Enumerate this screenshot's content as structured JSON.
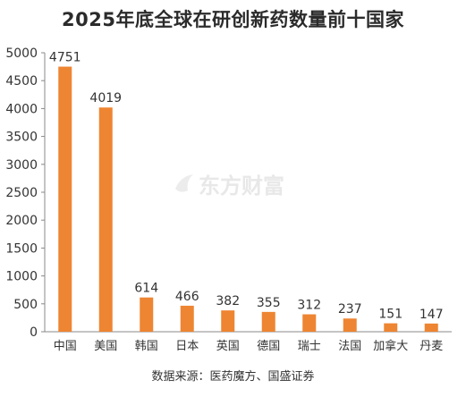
{
  "chart_data": {
    "type": "bar",
    "title": "2025年底全球在研创新药数量前十国家",
    "categories": [
      "中国",
      "美国",
      "韩国",
      "日本",
      "英国",
      "德国",
      "瑞士",
      "法国",
      "加拿大",
      "丹麦"
    ],
    "values": [
      4751,
      4019,
      614,
      466,
      382,
      355,
      312,
      237,
      151,
      147
    ],
    "ylim": [
      0,
      5000
    ],
    "yticks": [
      0,
      500,
      1000,
      1500,
      2000,
      2500,
      3000,
      3500,
      4000,
      4500,
      5000
    ],
    "xlabel": "",
    "ylabel": "",
    "grid": false,
    "legend": "none",
    "bar_color": "#ee8532",
    "source": "数据来源：医药魔方、国盛证券"
  },
  "watermark": {
    "text": "东方财富",
    "icon": "eastmoney-logo-icon"
  }
}
